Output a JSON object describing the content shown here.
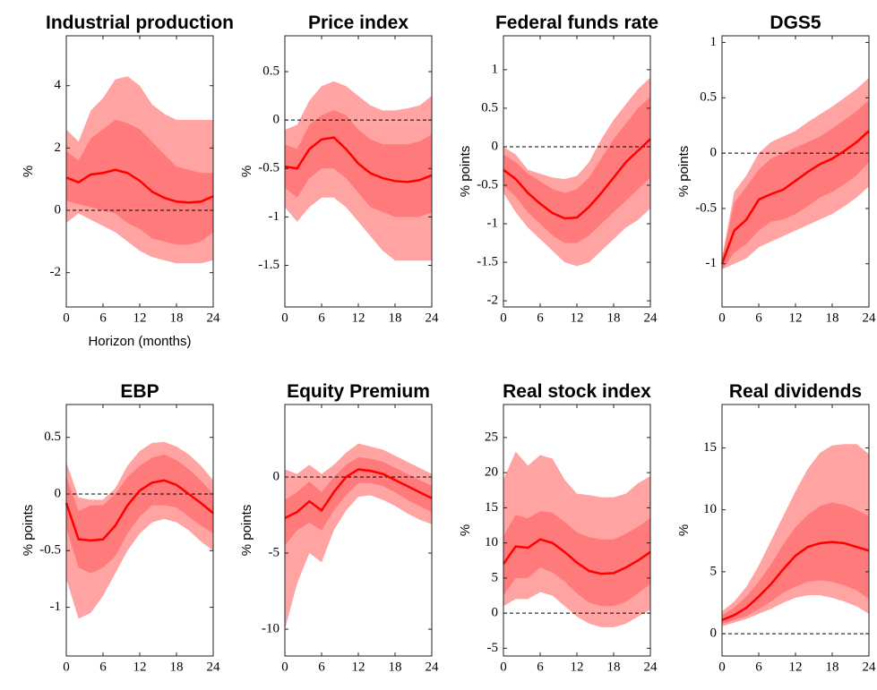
{
  "chart_data": [
    {
      "type": "band",
      "title": "Industrial production",
      "ylabel": "%",
      "xlabel": "Horizon (months)",
      "x": [
        0,
        2,
        4,
        6,
        8,
        10,
        12,
        14,
        16,
        18,
        20,
        22,
        24
      ],
      "xlim": [
        0,
        24
      ],
      "xticks": [
        0,
        6,
        12,
        18,
        24
      ],
      "ylim": [
        -3.1,
        5.6
      ],
      "yticks": [
        -2,
        0,
        2,
        4
      ],
      "hline": 0,
      "bands": [
        {
          "color": "#ffa3a3",
          "lower": [
            -0.4,
            -0.1,
            -0.3,
            -0.5,
            -0.7,
            -1.0,
            -1.3,
            -1.5,
            -1.6,
            -1.7,
            -1.7,
            -1.7,
            -1.6
          ],
          "upper": [
            2.6,
            2.2,
            3.2,
            3.6,
            4.2,
            4.3,
            4.0,
            3.4,
            3.1,
            2.9,
            2.9,
            2.9,
            2.9
          ]
        },
        {
          "color": "#ff7a7a",
          "lower": [
            0.3,
            0.2,
            0.1,
            0.0,
            -0.1,
            -0.4,
            -0.6,
            -0.9,
            -1.0,
            -1.1,
            -1.1,
            -1.0,
            -0.7
          ],
          "upper": [
            1.9,
            1.6,
            2.3,
            2.6,
            2.9,
            2.8,
            2.6,
            2.2,
            1.8,
            1.4,
            1.3,
            1.2,
            1.2
          ]
        }
      ],
      "line": {
        "color": "#ff0000",
        "values": [
          1.05,
          0.9,
          1.15,
          1.2,
          1.3,
          1.2,
          0.95,
          0.6,
          0.4,
          0.28,
          0.25,
          0.28,
          0.45
        ]
      }
    },
    {
      "type": "band",
      "title": "Price index",
      "ylabel": "%",
      "x": [
        0,
        2,
        4,
        6,
        8,
        10,
        12,
        14,
        16,
        18,
        20,
        22,
        24
      ],
      "xlim": [
        0,
        24
      ],
      "xticks": [
        0,
        6,
        12,
        18,
        24
      ],
      "ylim": [
        -1.93,
        0.87
      ],
      "yticks": [
        -1.5,
        -1,
        -0.5,
        0,
        0.5
      ],
      "hline": 0,
      "bands": [
        {
          "color": "#ffa3a3",
          "lower": [
            -0.9,
            -1.05,
            -0.9,
            -0.8,
            -0.8,
            -0.9,
            -1.05,
            -1.2,
            -1.35,
            -1.45,
            -1.45,
            -1.45,
            -1.45
          ],
          "upper": [
            -0.1,
            -0.05,
            0.2,
            0.35,
            0.4,
            0.35,
            0.25,
            0.15,
            0.1,
            0.1,
            0.12,
            0.15,
            0.25
          ]
        },
        {
          "color": "#ff7a7a",
          "lower": [
            -0.7,
            -0.8,
            -0.6,
            -0.5,
            -0.5,
            -0.6,
            -0.75,
            -0.9,
            -0.95,
            -1.0,
            -1.0,
            -1.0,
            -0.95
          ],
          "upper": [
            -0.25,
            -0.3,
            -0.05,
            0.05,
            0.1,
            0.05,
            -0.1,
            -0.2,
            -0.25,
            -0.25,
            -0.25,
            -0.22,
            -0.15
          ]
        }
      ],
      "line": {
        "color": "#ff0000",
        "values": [
          -0.48,
          -0.5,
          -0.3,
          -0.2,
          -0.18,
          -0.3,
          -0.45,
          -0.55,
          -0.6,
          -0.63,
          -0.64,
          -0.62,
          -0.57
        ]
      }
    },
    {
      "type": "band",
      "title": "Federal funds rate",
      "ylabel": "% points",
      "x": [
        0,
        2,
        4,
        6,
        8,
        10,
        12,
        14,
        16,
        18,
        20,
        22,
        24
      ],
      "xlim": [
        0,
        24
      ],
      "xticks": [
        0,
        6,
        12,
        18,
        24
      ],
      "ylim": [
        -2.08,
        1.44
      ],
      "yticks": [
        -2,
        -1.5,
        -1,
        -0.5,
        0,
        0.5,
        1
      ],
      "hline": 0,
      "bands": [
        {
          "color": "#ffa3a3",
          "lower": [
            -0.6,
            -0.85,
            -1.05,
            -1.2,
            -1.35,
            -1.5,
            -1.55,
            -1.5,
            -1.35,
            -1.2,
            -1.05,
            -0.95,
            -0.8
          ],
          "upper": [
            0.0,
            -0.1,
            -0.3,
            -0.35,
            -0.4,
            -0.42,
            -0.38,
            -0.2,
            0.1,
            0.35,
            0.55,
            0.75,
            0.9
          ]
        },
        {
          "color": "#ff7a7a",
          "lower": [
            -0.5,
            -0.65,
            -0.85,
            -1.0,
            -1.15,
            -1.25,
            -1.25,
            -1.15,
            -1.0,
            -0.85,
            -0.7,
            -0.55,
            -0.4
          ],
          "upper": [
            -0.1,
            -0.2,
            -0.35,
            -0.45,
            -0.55,
            -0.6,
            -0.55,
            -0.4,
            -0.15,
            0.1,
            0.3,
            0.5,
            0.65
          ]
        }
      ],
      "line": {
        "color": "#ff0000",
        "values": [
          -0.3,
          -0.42,
          -0.6,
          -0.74,
          -0.86,
          -0.93,
          -0.92,
          -0.78,
          -0.6,
          -0.4,
          -0.2,
          -0.05,
          0.1
        ]
      }
    },
    {
      "type": "band",
      "title": "DGS5",
      "ylabel": "% points",
      "x": [
        0,
        2,
        4,
        6,
        8,
        10,
        12,
        14,
        16,
        18,
        20,
        22,
        24
      ],
      "xlim": [
        0,
        24
      ],
      "xticks": [
        0,
        6,
        12,
        18,
        24
      ],
      "ylim": [
        -1.39,
        1.06
      ],
      "yticks": [
        -1,
        -0.5,
        0,
        0.5,
        1
      ],
      "hline": 0,
      "bands": [
        {
          "color": "#ffa3a3",
          "lower": [
            -1.05,
            -1.0,
            -0.95,
            -0.85,
            -0.8,
            -0.75,
            -0.7,
            -0.65,
            -0.6,
            -0.55,
            -0.48,
            -0.4,
            -0.3
          ],
          "upper": [
            -0.95,
            -0.35,
            -0.2,
            0.0,
            0.1,
            0.15,
            0.2,
            0.28,
            0.35,
            0.42,
            0.5,
            0.58,
            0.68
          ]
        },
        {
          "color": "#ff7a7a",
          "lower": [
            -1.05,
            -0.9,
            -0.82,
            -0.7,
            -0.62,
            -0.6,
            -0.55,
            -0.48,
            -0.4,
            -0.35,
            -0.28,
            -0.2,
            -0.08
          ],
          "upper": [
            -0.95,
            -0.45,
            -0.3,
            -0.15,
            -0.05,
            0.0,
            0.05,
            0.1,
            0.15,
            0.22,
            0.3,
            0.38,
            0.48
          ]
        }
      ],
      "line": {
        "color": "#ff0000",
        "values": [
          -1.0,
          -0.7,
          -0.6,
          -0.42,
          -0.37,
          -0.33,
          -0.25,
          -0.17,
          -0.1,
          -0.05,
          0.02,
          0.1,
          0.2
        ]
      }
    },
    {
      "type": "band",
      "title": "EBP",
      "ylabel": "% points",
      "x": [
        0,
        2,
        4,
        6,
        8,
        10,
        12,
        14,
        16,
        18,
        20,
        22,
        24
      ],
      "xlim": [
        0,
        24
      ],
      "xticks": [
        0,
        6,
        12,
        18,
        24
      ],
      "ylim": [
        -1.43,
        0.79
      ],
      "yticks": [
        -1,
        -0.5,
        0,
        0.5
      ],
      "hline": 0,
      "bands": [
        {
          "color": "#ffa3a3",
          "lower": [
            -0.75,
            -1.1,
            -1.05,
            -0.9,
            -0.7,
            -0.5,
            -0.35,
            -0.25,
            -0.22,
            -0.25,
            -0.32,
            -0.42,
            -0.5
          ],
          "upper": [
            0.28,
            -0.03,
            -0.05,
            -0.05,
            0.05,
            0.25,
            0.38,
            0.45,
            0.46,
            0.42,
            0.35,
            0.25,
            0.12
          ]
        },
        {
          "color": "#ff7a7a",
          "lower": [
            -0.3,
            -0.65,
            -0.7,
            -0.65,
            -0.55,
            -0.35,
            -0.2,
            -0.1,
            -0.1,
            -0.12,
            -0.2,
            -0.28,
            -0.35
          ],
          "upper": [
            0.15,
            -0.15,
            -0.1,
            -0.1,
            0.0,
            0.15,
            0.25,
            0.32,
            0.35,
            0.3,
            0.22,
            0.12,
            0.0
          ]
        }
      ],
      "line": {
        "color": "#ff0000",
        "values": [
          -0.08,
          -0.4,
          -0.41,
          -0.4,
          -0.28,
          -0.1,
          0.03,
          0.1,
          0.12,
          0.08,
          0.0,
          -0.08,
          -0.17
        ]
      }
    },
    {
      "type": "band",
      "title": "Equity Premium",
      "ylabel": "% points",
      "x": [
        0,
        2,
        4,
        6,
        8,
        10,
        12,
        14,
        16,
        18,
        20,
        22,
        24
      ],
      "xlim": [
        0,
        24
      ],
      "xticks": [
        0,
        6,
        12,
        18,
        24
      ],
      "ylim": [
        -11.76,
        4.76
      ],
      "yticks": [
        -10,
        -5,
        0
      ],
      "hline": 0,
      "bands": [
        {
          "color": "#ffa3a3",
          "lower": [
            -10,
            -7,
            -5,
            -5.6,
            -3.5,
            -2.2,
            -1.3,
            -1.2,
            -1.5,
            -1.9,
            -2.4,
            -2.8,
            -3.1
          ],
          "upper": [
            0.5,
            0.2,
            0.8,
            0.2,
            0.8,
            1.6,
            2.2,
            2.0,
            1.8,
            1.4,
            1.0,
            0.6,
            0.2
          ]
        },
        {
          "color": "#ff7a7a",
          "lower": [
            -4.5,
            -3.5,
            -3.0,
            -3.5,
            -2.2,
            -1.2,
            -0.4,
            -0.4,
            -0.6,
            -1.0,
            -1.5,
            -1.9,
            -2.3
          ],
          "upper": [
            -1.5,
            -1.0,
            -0.3,
            -1.0,
            0.0,
            0.8,
            1.3,
            1.2,
            1.0,
            0.6,
            0.2,
            -0.2,
            -0.6
          ]
        }
      ],
      "line": {
        "color": "#ff0000",
        "values": [
          -2.7,
          -2.3,
          -1.6,
          -2.2,
          -1.0,
          0.0,
          0.5,
          0.4,
          0.2,
          -0.2,
          -0.6,
          -1.0,
          -1.4
        ]
      }
    },
    {
      "type": "band",
      "title": "Real stock index",
      "ylabel": "%",
      "x": [
        0,
        2,
        4,
        6,
        8,
        10,
        12,
        14,
        16,
        18,
        20,
        22,
        24
      ],
      "xlim": [
        0,
        24
      ],
      "xticks": [
        0,
        6,
        12,
        18,
        24
      ],
      "ylim": [
        -6.1,
        29.7
      ],
      "yticks": [
        -5,
        0,
        5,
        10,
        15,
        20,
        25
      ],
      "hline": 0,
      "bands": [
        {
          "color": "#ffa3a3",
          "lower": [
            1,
            2,
            2,
            3,
            2.5,
            1,
            -0.5,
            -1.5,
            -2,
            -2,
            -1.5,
            -0.5,
            0.5
          ],
          "upper": [
            19,
            23,
            21,
            22.5,
            22,
            19,
            17,
            16.8,
            16.5,
            16.5,
            17,
            18.5,
            19.5
          ]
        },
        {
          "color": "#ff7a7a",
          "lower": [
            2.5,
            5,
            5,
            6.5,
            5.8,
            4.5,
            2.8,
            1.5,
            1.0,
            1.0,
            1.6,
            2.8,
            4.2
          ],
          "upper": [
            11,
            14,
            13.5,
            14.5,
            14.3,
            13,
            11.5,
            10.8,
            10.5,
            10.5,
            11.3,
            12.3,
            13.5
          ]
        }
      ],
      "line": {
        "color": "#ff0000",
        "values": [
          7,
          9.5,
          9.3,
          10.5,
          10,
          8.7,
          7.2,
          6.0,
          5.6,
          5.7,
          6.5,
          7.5,
          8.7
        ]
      }
    },
    {
      "type": "band",
      "title": "Real dividends",
      "ylabel": "%",
      "x": [
        0,
        2,
        4,
        6,
        8,
        10,
        12,
        14,
        16,
        18,
        20,
        22,
        24
      ],
      "xlim": [
        0,
        24
      ],
      "xticks": [
        0,
        6,
        12,
        18,
        24
      ],
      "ylim": [
        -1.8,
        18.5
      ],
      "yticks": [
        0,
        5,
        10,
        15
      ],
      "hline": 0,
      "bands": [
        {
          "color": "#ffa3a3",
          "lower": [
            0.6,
            0.9,
            1.2,
            1.6,
            2.0,
            2.5,
            2.9,
            3.1,
            3.1,
            2.9,
            2.6,
            2.2,
            1.6
          ],
          "upper": [
            1.8,
            2.6,
            3.8,
            5.5,
            7.5,
            9.5,
            11.5,
            13.3,
            14.6,
            15.2,
            15.3,
            15.3,
            14.5
          ]
        },
        {
          "color": "#ff7a7a",
          "lower": [
            0.8,
            1.1,
            1.4,
            2.0,
            2.6,
            3.3,
            3.8,
            4.2,
            4.3,
            4.2,
            3.9,
            3.5,
            2.8
          ],
          "upper": [
            1.5,
            2.1,
            3.0,
            4.2,
            5.6,
            7.2,
            8.6,
            9.6,
            10.3,
            10.6,
            10.4,
            10.0,
            9.5
          ]
        }
      ],
      "line": {
        "color": "#ff0000",
        "values": [
          1.1,
          1.5,
          2.1,
          3.0,
          4.0,
          5.2,
          6.3,
          7.0,
          7.3,
          7.4,
          7.3,
          7.0,
          6.7
        ]
      }
    }
  ]
}
